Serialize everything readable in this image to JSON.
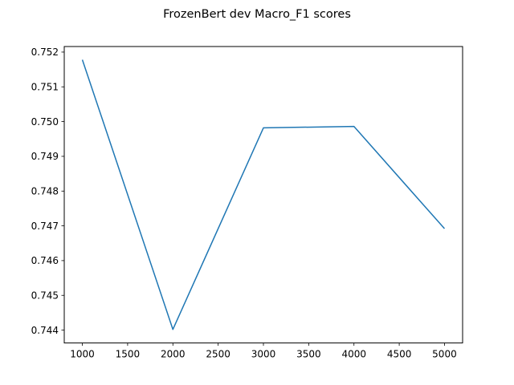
{
  "chart_data": {
    "type": "line",
    "title": "FrozenBert dev Macro_F1 scores",
    "xlabel": "",
    "ylabel": "",
    "x": [
      1000,
      2000,
      3000,
      4000,
      5000
    ],
    "series": [
      {
        "values": [
          0.75178,
          0.74402,
          0.74982,
          0.74986,
          0.74692
        ],
        "color": "#1f77b4"
      }
    ],
    "xlim": [
      800,
      5200
    ],
    "ylim": [
      0.74363,
      0.75216
    ],
    "xticks": [
      1000,
      1500,
      2000,
      2500,
      3000,
      3500,
      4000,
      4500,
      5000
    ],
    "xtick_labels": [
      "1000",
      "1500",
      "2000",
      "2500",
      "3000",
      "3500",
      "4000",
      "4500",
      "5000"
    ],
    "yticks": [
      0.744,
      0.745,
      0.746,
      0.747,
      0.748,
      0.749,
      0.75,
      0.751,
      0.752
    ],
    "ytick_labels": [
      "0.744",
      "0.745",
      "0.746",
      "0.747",
      "0.748",
      "0.749",
      "0.750",
      "0.751",
      "0.752"
    ],
    "grid": false,
    "legend": false
  }
}
